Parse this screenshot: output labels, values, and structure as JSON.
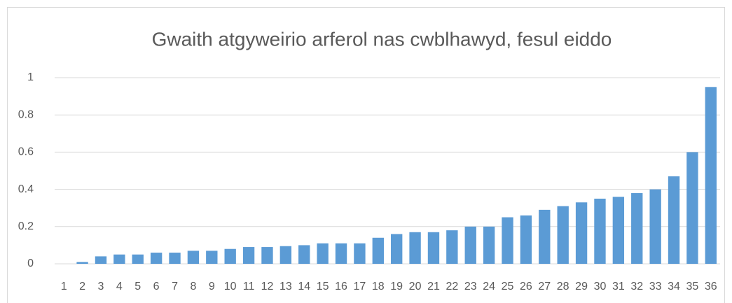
{
  "chart_data": {
    "type": "bar",
    "title": "Gwaith atgyweirio arferol nas cwblhawyd, fesul eiddo",
    "categories": [
      "1",
      "2",
      "3",
      "4",
      "5",
      "6",
      "7",
      "8",
      "9",
      "10",
      "11",
      "12",
      "13",
      "14",
      "15",
      "16",
      "17",
      "18",
      "19",
      "20",
      "21",
      "22",
      "23",
      "24",
      "25",
      "26",
      "27",
      "28",
      "29",
      "30",
      "31",
      "32",
      "33",
      "34",
      "35",
      "36"
    ],
    "values": [
      0,
      0.01,
      0.04,
      0.05,
      0.05,
      0.06,
      0.06,
      0.07,
      0.07,
      0.08,
      0.09,
      0.09,
      0.095,
      0.1,
      0.11,
      0.11,
      0.11,
      0.14,
      0.16,
      0.17,
      0.17,
      0.18,
      0.2,
      0.2,
      0.25,
      0.26,
      0.29,
      0.31,
      0.33,
      0.35,
      0.36,
      0.38,
      0.4,
      0.47,
      0.6,
      0.95
    ],
    "color": "#5b9bd5",
    "ylim": [
      0,
      1
    ],
    "yticks": [
      0,
      0.2,
      0.4,
      0.6,
      0.8,
      1
    ],
    "grid": true
  }
}
